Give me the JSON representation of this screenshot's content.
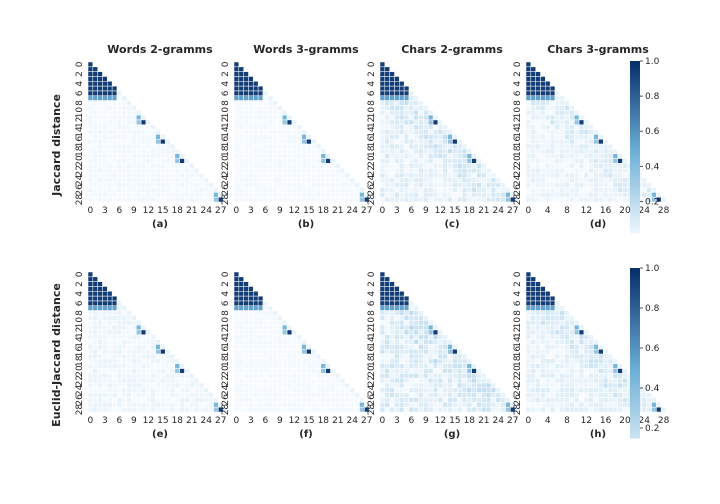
{
  "figure": {
    "row_labels": [
      "Jaccard distance",
      "Euclid-Jaccard distance"
    ],
    "colorbar_ticks": [
      "1.0",
      "0.8",
      "0.6",
      "0.4",
      "0.2"
    ],
    "colorbar_ticks_bottom": [
      "1.0",
      "0.8",
      "0.6",
      "0.4",
      "0.2"
    ]
  },
  "chart_data": [
    {
      "type": "heatmap",
      "title": "Words 2-gramms",
      "sublabel": "(a)",
      "size": 29,
      "variant": "words",
      "noise": 0.03,
      "xticks": [
        "0",
        "3",
        "6",
        "9",
        "12",
        "15",
        "18",
        "21",
        "24",
        "27"
      ],
      "yticks": [
        "0",
        "2",
        "4",
        "6",
        "8",
        "10",
        "12",
        "14",
        "16",
        "18",
        "20",
        "22",
        "24",
        "26",
        "28"
      ]
    },
    {
      "type": "heatmap",
      "title": "Words 3-gramms",
      "sublabel": "(b)",
      "size": 29,
      "variant": "words",
      "noise": 0.02,
      "xticks": [
        "0",
        "3",
        "6",
        "9",
        "12",
        "15",
        "18",
        "21",
        "24",
        "27"
      ],
      "yticks": [
        "0",
        "2",
        "4",
        "6",
        "8",
        "10",
        "12",
        "14",
        "16",
        "18",
        "20",
        "22",
        "24",
        "26",
        "28"
      ]
    },
    {
      "type": "heatmap",
      "title": "Chars 2-gramms",
      "sublabel": "(c)",
      "size": 29,
      "variant": "chars",
      "noise": 0.12,
      "xticks": [
        "0",
        "3",
        "6",
        "9",
        "12",
        "15",
        "18",
        "21",
        "24",
        "27"
      ],
      "yticks": [
        "0",
        "2",
        "4",
        "6",
        "8",
        "10",
        "12",
        "14",
        "16",
        "18",
        "20",
        "22",
        "24",
        "26",
        "28"
      ]
    },
    {
      "type": "heatmap",
      "title": "Chars 3-gramms",
      "sublabel": "(d)",
      "size": 29,
      "variant": "chars",
      "noise": 0.07,
      "xticks": [
        "0",
        "4",
        "8",
        "12",
        "16",
        "20",
        "24",
        "28"
      ],
      "yticks": [
        "0",
        "2",
        "4",
        "6",
        "8",
        "10",
        "12",
        "14",
        "16",
        "18",
        "20",
        "22",
        "24",
        "26",
        "28"
      ]
    },
    {
      "type": "heatmap",
      "title": "",
      "sublabel": "(e)",
      "size": 29,
      "variant": "words",
      "noise": 0.06,
      "xticks": [
        "0",
        "3",
        "6",
        "9",
        "12",
        "15",
        "18",
        "21",
        "24",
        "27"
      ],
      "yticks": [
        "0",
        "2",
        "4",
        "6",
        "8",
        "10",
        "12",
        "14",
        "16",
        "18",
        "20",
        "22",
        "24",
        "26",
        "28"
      ]
    },
    {
      "type": "heatmap",
      "title": "",
      "sublabel": "(f)",
      "size": 29,
      "variant": "words",
      "noise": 0.02,
      "xticks": [
        "0",
        "3",
        "6",
        "9",
        "12",
        "15",
        "18",
        "21",
        "24",
        "27"
      ],
      "yticks": [
        "0",
        "2",
        "4",
        "6",
        "8",
        "10",
        "12",
        "14",
        "16",
        "18",
        "20",
        "22",
        "24",
        "26",
        "28"
      ]
    },
    {
      "type": "heatmap",
      "title": "",
      "sublabel": "(g)",
      "size": 29,
      "variant": "chars",
      "noise": 0.15,
      "xticks": [
        "0",
        "3",
        "6",
        "9",
        "12",
        "15",
        "18",
        "21",
        "24",
        "27"
      ],
      "yticks": [
        "0",
        "2",
        "4",
        "6",
        "8",
        "10",
        "12",
        "14",
        "16",
        "18",
        "20",
        "22",
        "24",
        "26",
        "28"
      ]
    },
    {
      "type": "heatmap",
      "title": "",
      "sublabel": "(h)",
      "size": 29,
      "variant": "chars",
      "noise": 0.1,
      "xticks": [
        "0",
        "4",
        "8",
        "12",
        "16",
        "20",
        "24",
        "28"
      ],
      "yticks": [
        "0",
        "2",
        "4",
        "6",
        "8",
        "10",
        "12",
        "14",
        "16",
        "18",
        "20",
        "22",
        "24",
        "26",
        "28"
      ]
    }
  ],
  "colors": {
    "low": "#f7fbff",
    "mid": "#6baed6",
    "high": "#08306b"
  }
}
